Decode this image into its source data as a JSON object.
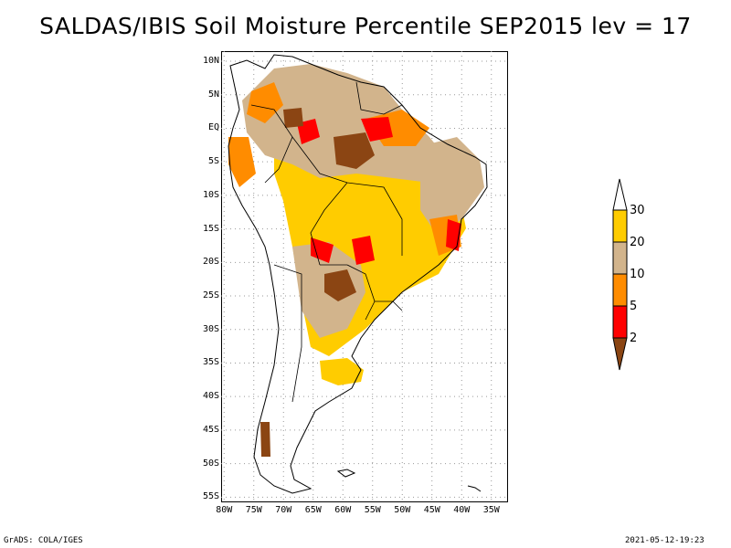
{
  "title": "SALDAS/IBIS Soil Moisture Percentile SEP2015 lev = 17",
  "map": {
    "y_ticks": [
      "10N",
      "5N",
      "EQ",
      "5S",
      "10S",
      "15S",
      "20S",
      "25S",
      "30S",
      "35S",
      "40S",
      "45S",
      "50S",
      "55S"
    ],
    "x_ticks": [
      "80W",
      "75W",
      "70W",
      "65W",
      "60W",
      "55W",
      "50W",
      "45W",
      "40W",
      "35W"
    ],
    "lon_range": [
      -80.5,
      -32.5
    ],
    "lat_range": [
      -55.5,
      11.5
    ]
  },
  "legend": {
    "labels": [
      "30",
      "20",
      "10",
      "5",
      "2"
    ],
    "colors": {
      "above30": "#ffffff",
      "c20_30": "#ffcc00",
      "c10_20": "#d2b48c",
      "c5_10": "#ff8c00",
      "c2_5": "#ff0000",
      "below2": "#8b4513"
    }
  },
  "footer": {
    "left": "GrADS: COLA/IGES",
    "right": "2021-05-12-19:23"
  }
}
